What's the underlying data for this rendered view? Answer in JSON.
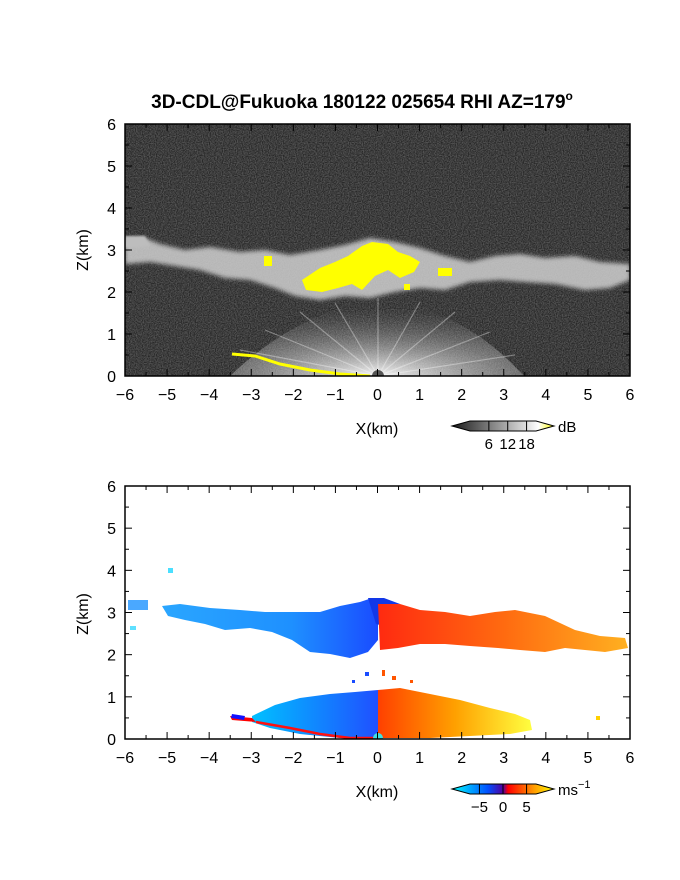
{
  "title": {
    "main": "3D-CDL@Fukuoka 180122 025654 RHI AZ=179",
    "superscript": "o"
  },
  "chart_data": [
    {
      "type": "heatmap",
      "quantity": "reflectivity",
      "xlabel": "X(km)",
      "ylabel": "Z(km)",
      "xlim": [
        -6,
        6
      ],
      "ylim": [
        0,
        6
      ],
      "xticks": [
        "-6",
        "-5",
        "-4",
        "-3",
        "-2",
        "-1",
        "0",
        "1",
        "2",
        "3",
        "4",
        "5",
        "6"
      ],
      "yticks": [
        "0",
        "1",
        "2",
        "3",
        "4",
        "5",
        "6"
      ],
      "colorbar": {
        "unit": "dB",
        "ticks": [
          "6",
          "12",
          "18"
        ],
        "tick_values": [
          6,
          12,
          18
        ],
        "range": [
          0,
          21
        ],
        "colors": [
          "#1a1a1a",
          "#ffffff",
          "#ffff00"
        ]
      },
      "layers": [
        {
          "name": "cloud_layer",
          "x_range": [
            -6,
            6
          ],
          "z_base_km": 2.2,
          "z_top_km": 3.2,
          "level": "moderate",
          "color": "#cfcfcf"
        },
        {
          "name": "strong_echo_core",
          "x_range": [
            -1.8,
            1.2
          ],
          "z_base_km": 2.0,
          "z_top_km": 3.2,
          "level": "high",
          "color": "#ffff00"
        },
        {
          "name": "near_field_fan",
          "x_range": [
            -3.4,
            2.3
          ],
          "z_base_km": 0.0,
          "z_top_km": 1.0,
          "level": "moderate",
          "color": "#ffffff"
        },
        {
          "name": "ground_clutter_trace",
          "x_range": [
            -3.4,
            -0.5
          ],
          "z_km_approx": [
            0.5,
            0.0
          ],
          "level": "high",
          "color": "#ffff00"
        }
      ]
    },
    {
      "type": "heatmap",
      "quantity": "doppler_velocity",
      "xlabel": "X(km)",
      "ylabel": "Z(km)",
      "xlim": [
        -6,
        6
      ],
      "ylim": [
        0,
        6
      ],
      "xticks": [
        "-6",
        "-5",
        "-4",
        "-3",
        "-2",
        "-1",
        "0",
        "1",
        "2",
        "3",
        "4",
        "5",
        "6"
      ],
      "yticks": [
        "0",
        "1",
        "2",
        "3",
        "4",
        "5",
        "6"
      ],
      "colorbar": {
        "unit": "ms",
        "unit_superscript": "−1",
        "ticks": [
          "−5",
          "0",
          "5"
        ],
        "tick_values": [
          -5,
          0,
          5
        ],
        "range": [
          -7,
          7
        ],
        "colors": [
          "#00ffff",
          "#0000ff",
          "#ff0000",
          "#ffff00"
        ]
      },
      "layers": [
        {
          "name": "cloud_negative_side",
          "x_range": [
            -5.9,
            0.0
          ],
          "z_base_km": 2.1,
          "z_top_km": 3.2,
          "velocity_ms": -4
        },
        {
          "name": "cloud_positive_side",
          "x_range": [
            0.0,
            5.9
          ],
          "z_base_km": 2.2,
          "z_top_km": 3.0,
          "velocity_ms": 4
        },
        {
          "name": "near_field_negative",
          "x_range": [
            -3.4,
            0.0
          ],
          "z_base_km": 0.0,
          "z_top_km": 1.0,
          "velocity_ms": -4
        },
        {
          "name": "near_field_positive",
          "x_range": [
            0.0,
            3.6
          ],
          "z_base_km": 0.0,
          "z_top_km": 1.0,
          "velocity_ms": 4
        }
      ]
    }
  ]
}
